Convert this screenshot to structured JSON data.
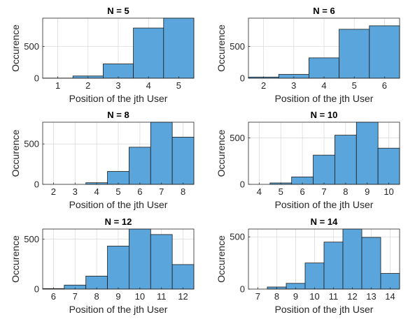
{
  "figure": {
    "background": "#ffffff"
  },
  "style": {
    "bar_fill": "#5aa6dc",
    "bar_stroke": "#1b1b1b",
    "grid_color": "#dcdcdc",
    "axis_color": "#262626",
    "text_color": "#262626"
  },
  "chart_data": [
    {
      "type": "bar",
      "title": "N = 5",
      "xlabel": "Position of the jth User",
      "ylabel": "Occurence",
      "categories": [
        1,
        2,
        3,
        4,
        5
      ],
      "values": [
        2,
        35,
        225,
        790,
        945
      ],
      "xlim": [
        0.5,
        5.5
      ],
      "ylim": [
        0,
        945
      ],
      "yticks": [
        0,
        500
      ],
      "grid": true
    },
    {
      "type": "bar",
      "title": "N = 6",
      "xlabel": "Position of the jth User",
      "ylabel": "Occurence",
      "categories": [
        2,
        3,
        4,
        5,
        6
      ],
      "values": [
        18,
        60,
        320,
        770,
        825
      ],
      "xlim": [
        1.5,
        6.5
      ],
      "ylim": [
        0,
        945
      ],
      "yticks": [
        0,
        500
      ],
      "grid": true
    },
    {
      "type": "bar",
      "title": "N = 8",
      "xlabel": "Position of the jth User",
      "ylabel": "Occurence",
      "categories": [
        2,
        3,
        4,
        5,
        6,
        7,
        8
      ],
      "values": [
        0,
        0,
        20,
        160,
        460,
        770,
        585
      ],
      "xlim": [
        1.5,
        8.5
      ],
      "ylim": [
        0,
        770
      ],
      "yticks": [
        0,
        500
      ],
      "grid": true
    },
    {
      "type": "bar",
      "title": "N = 10",
      "xlabel": "Position of the jth User",
      "ylabel": "Occurence",
      "categories": [
        4,
        5,
        6,
        7,
        8,
        9,
        10
      ],
      "values": [
        0,
        15,
        80,
        315,
        530,
        670,
        390
      ],
      "xlim": [
        3.5,
        10.5
      ],
      "ylim": [
        0,
        670
      ],
      "yticks": [
        0,
        500
      ],
      "grid": true
    },
    {
      "type": "bar",
      "title": "N = 12",
      "xlabel": "Position of the jth User",
      "ylabel": "Occurence",
      "categories": [
        6,
        7,
        8,
        9,
        10,
        11,
        12
      ],
      "values": [
        5,
        40,
        130,
        430,
        600,
        545,
        245
      ],
      "xlim": [
        5.5,
        12.5
      ],
      "ylim": [
        0,
        600
      ],
      "yticks": [
        0,
        500
      ],
      "grid": true
    },
    {
      "type": "bar",
      "title": "N = 14",
      "xlabel": "Position of the jth User",
      "ylabel": "Occurence",
      "categories": [
        7,
        8,
        9,
        10,
        11,
        12,
        13,
        14
      ],
      "values": [
        0,
        20,
        55,
        250,
        450,
        575,
        495,
        150
      ],
      "xlim": [
        6.5,
        14.5
      ],
      "ylim": [
        0,
        575
      ],
      "yticks": [
        0,
        500
      ],
      "grid": true
    }
  ]
}
